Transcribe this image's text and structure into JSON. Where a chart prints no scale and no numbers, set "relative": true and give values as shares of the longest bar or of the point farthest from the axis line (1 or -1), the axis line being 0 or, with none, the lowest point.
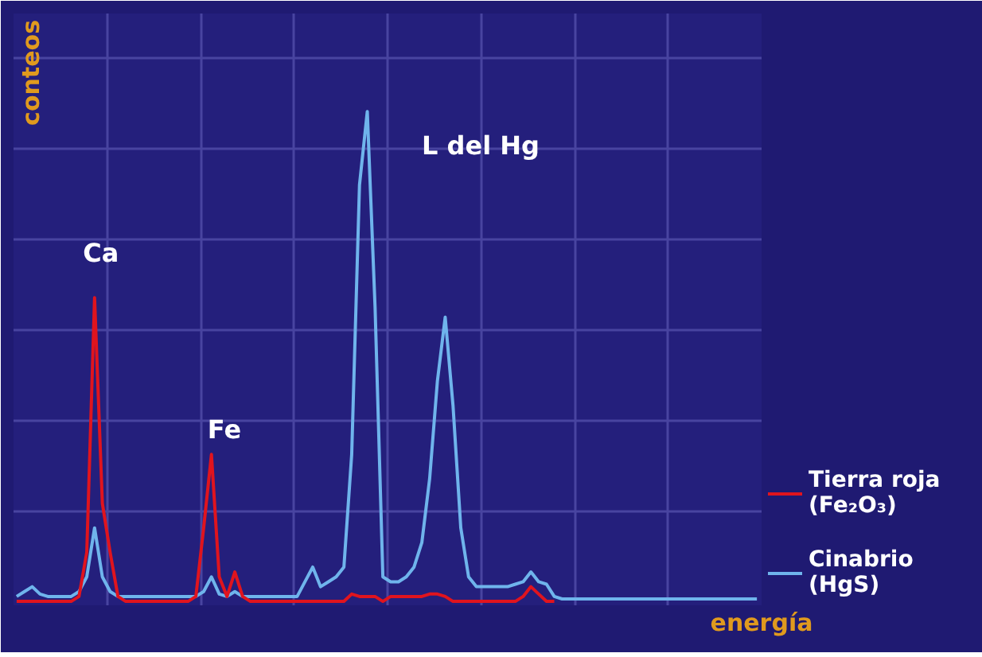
{
  "chart_data": {
    "type": "line",
    "relative": true,
    "xlabel": "energía",
    "ylabel": "conteos",
    "grid": true,
    "legend": "right",
    "marker": "none",
    "line_style": "solid",
    "annotations": [
      "Ca",
      "Fe",
      "L del Hg"
    ],
    "categories": [
      null,
      null,
      null,
      null,
      null,
      null,
      null,
      null,
      null,
      null,
      null,
      null,
      null,
      null,
      null,
      null,
      null,
      null,
      null,
      null,
      null,
      null,
      null,
      null,
      null,
      null,
      null,
      null,
      null,
      null,
      null,
      null,
      null,
      null,
      null,
      null,
      null,
      null,
      null,
      null,
      null,
      null,
      null,
      null,
      null,
      null,
      null,
      null,
      null,
      null,
      null,
      null,
      null,
      null,
      null,
      null,
      null,
      null,
      null,
      null,
      null,
      null,
      null,
      null,
      null,
      null,
      null,
      null,
      null,
      null,
      null,
      null,
      null,
      null,
      null,
      null,
      null,
      null,
      null,
      null,
      null,
      null,
      null,
      null,
      null,
      null,
      null,
      null,
      null,
      null,
      null,
      null,
      null,
      null,
      null,
      null
    ],
    "series": [
      {
        "name": "Tierra roja (Fe₂O₃)",
        "color": "#e0141e",
        "values": [
          0,
          0,
          0,
          0,
          0,
          0,
          0,
          0,
          0.01,
          0.1,
          0.62,
          0.2,
          0.1,
          0.01,
          0,
          0,
          0,
          0,
          0,
          0,
          0,
          0,
          0,
          0.01,
          0.15,
          0.3,
          0.05,
          0.01,
          0.06,
          0.01,
          0,
          0,
          0,
          0,
          0,
          0,
          0,
          0,
          0,
          0,
          0,
          0,
          0,
          0.015,
          0.01,
          0.01,
          0.01,
          0,
          0.01,
          0.01,
          0.01,
          0.01,
          0.01,
          0.015,
          0.015,
          0.01,
          0,
          0,
          0,
          0,
          0,
          0,
          0,
          0,
          0,
          0.01,
          0.03,
          0.015,
          0,
          0,
          null,
          null,
          null,
          null,
          null,
          null,
          null,
          null,
          null,
          null,
          null,
          null,
          null,
          null,
          null,
          null,
          null,
          null,
          null,
          null,
          null,
          null,
          null,
          null,
          null,
          null
        ]
      },
      {
        "name": "Cinabrio (HgS)",
        "color": "#6fb4ec",
        "values": [
          0.01,
          0.02,
          0.03,
          0.015,
          0.01,
          0.01,
          0.01,
          0.01,
          0.02,
          0.05,
          0.15,
          0.05,
          0.02,
          0.01,
          0.01,
          0.01,
          0.01,
          0.01,
          0.01,
          0.01,
          0.01,
          0.01,
          0.01,
          0.01,
          0.02,
          0.05,
          0.015,
          0.01,
          0.02,
          0.01,
          0.01,
          0.01,
          0.01,
          0.01,
          0.01,
          0.01,
          0.01,
          0.04,
          0.07,
          0.03,
          0.04,
          0.05,
          0.07,
          0.3,
          0.85,
          1,
          0.6,
          0.05,
          0.04,
          0.04,
          0.05,
          0.07,
          0.12,
          0.25,
          0.45,
          0.58,
          0.4,
          0.15,
          0.05,
          0.03,
          0.03,
          0.03,
          0.03,
          0.03,
          0.035,
          0.04,
          0.06,
          0.04,
          0.035,
          0.01,
          0.005,
          0.005,
          0.005,
          0.005,
          0.005,
          0.005,
          0.005,
          0.005,
          0.005,
          0.005,
          0.005,
          0.005,
          0.005,
          0.005,
          0.005,
          0.005,
          0.005,
          0.005,
          0.005,
          0.005,
          0.005,
          0.005,
          0.005,
          0.005,
          0.005,
          0.005
        ]
      }
    ]
  }
}
